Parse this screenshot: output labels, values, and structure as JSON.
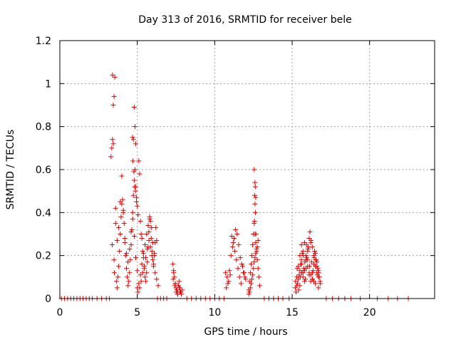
{
  "chart_data": {
    "type": "scatter",
    "title": "Day 313 of 2016, SRMTID for receiver bele",
    "xlabel": "GPS time / hours",
    "ylabel": "SRMTID / TECUs",
    "xlim": [
      0,
      24.2
    ],
    "ylim": [
      0,
      1.2
    ],
    "x_ticks": [
      0,
      5,
      10,
      15,
      20
    ],
    "x_tick_labels": [
      "0",
      "5",
      "10",
      "15",
      "20"
    ],
    "y_ticks": [
      0,
      0.2,
      0.4,
      0.6,
      0.8,
      1.0,
      1.2
    ],
    "y_tick_labels": [
      "0",
      "0.2",
      "0.4",
      "0.6",
      "0.8",
      "1",
      "1.2"
    ],
    "grid": true,
    "marker": "+",
    "series": [
      {
        "name": "SRMTID",
        "color": "#e00000",
        "x": [
          0.1,
          0.3,
          0.5,
          0.7,
          0.9,
          1.1,
          1.3,
          1.5,
          1.7,
          1.9,
          2.1,
          2.4,
          2.7,
          3.0,
          3.2,
          6.3,
          6.5,
          6.7,
          6.9,
          8.2,
          8.5,
          8.8,
          9.1,
          9.4,
          9.7,
          10.0,
          10.3,
          10.6,
          13.2,
          13.5,
          13.8,
          14.1,
          14.4,
          14.8,
          17.2,
          17.6,
          18.0,
          18.4,
          18.8,
          19.4,
          20.5,
          21.2,
          21.8,
          22.5,
          3.3,
          3.35,
          3.4,
          3.45,
          3.5,
          3.45,
          3.55,
          3.4,
          3.6,
          3.38,
          3.5,
          3.52,
          3.65,
          3.7,
          3.75,
          3.8,
          3.85,
          3.9,
          3.95,
          4.0,
          4.05,
          4.1,
          4.15,
          4.2,
          4.25,
          4.3,
          4.35,
          4.4,
          4.45,
          4.5,
          4.55,
          4.6,
          4.65,
          4.7,
          4.75,
          4.8,
          4.85,
          4.9,
          4.95,
          3.6,
          3.7,
          3.8,
          3.9,
          4.0,
          4.1,
          4.2,
          4.3,
          4.4,
          4.5,
          4.6,
          4.7,
          4.8,
          4.9,
          5.0,
          4.7,
          4.75,
          4.8,
          4.85,
          4.9,
          4.72,
          4.78,
          4.82,
          4.88,
          4.95,
          5.0,
          5.05,
          5.1,
          5.15,
          5.2,
          5.25,
          5.3,
          5.35,
          5.4,
          5.45,
          5.5,
          5.55,
          5.6,
          5.65,
          5.7,
          5.75,
          5.8,
          5.85,
          5.9,
          5.95,
          6.0,
          6.05,
          6.1,
          6.15,
          6.2,
          6.25,
          5.0,
          5.1,
          5.2,
          5.3,
          5.4,
          5.5,
          5.6,
          5.7,
          5.8,
          5.9,
          6.0,
          6.1,
          5.05,
          5.15,
          5.25,
          5.35,
          5.45,
          5.55,
          5.65,
          5.75,
          5.85,
          5.95,
          6.05,
          6.15,
          6.25,
          6.35,
          7.3,
          7.35,
          7.4,
          7.45,
          7.5,
          7.55,
          7.6,
          7.65,
          7.7,
          7.75,
          7.8,
          7.85,
          7.9,
          7.32,
          7.42,
          7.52,
          7.62,
          7.72,
          7.82,
          7.45,
          7.55,
          7.65,
          7.75,
          7.35,
          7.6,
          10.7,
          10.8,
          10.9,
          11.0,
          11.1,
          11.2,
          11.3,
          11.4,
          11.5,
          11.6,
          11.7,
          11.8,
          11.9,
          12.0,
          10.75,
          10.85,
          10.95,
          11.05,
          11.15,
          11.25,
          11.35,
          11.45,
          11.55,
          11.65,
          11.75,
          11.85,
          11.95,
          12.2,
          12.25,
          12.3,
          12.35,
          12.4,
          12.45,
          12.5,
          12.55,
          12.6,
          12.65,
          12.7,
          12.75,
          12.8,
          12.85,
          12.9,
          12.55,
          12.6,
          12.62,
          12.58,
          12.65,
          12.6,
          12.63,
          12.57,
          12.66,
          12.2,
          12.3,
          12.4,
          12.5,
          12.6,
          12.7,
          12.8,
          12.25,
          12.35,
          12.45,
          12.55,
          12.65,
          12.75,
          15.2,
          15.3,
          15.4,
          15.5,
          15.6,
          15.7,
          15.8,
          15.9,
          16.0,
          16.1,
          16.2,
          16.3,
          16.4,
          16.5,
          16.6,
          16.7,
          16.8,
          15.25,
          15.35,
          15.45,
          15.55,
          15.65,
          15.75,
          15.85,
          15.95,
          16.05,
          16.15,
          16.25,
          16.35,
          16.45,
          16.55,
          16.65,
          16.75,
          15.3,
          15.4,
          15.5,
          15.6,
          15.7,
          15.8,
          15.9,
          16.0,
          16.1,
          16.2,
          16.3,
          16.4,
          16.5,
          16.6,
          16.7,
          15.22,
          15.42,
          15.62,
          15.82,
          16.02,
          16.22,
          16.42,
          16.62,
          16.82,
          15.32,
          15.52,
          15.72,
          15.92,
          16.12,
          16.32,
          16.52,
          16.72,
          15.5,
          15.7,
          15.9,
          16.1,
          16.3,
          16.5,
          16.7,
          15.6,
          15.8,
          16.0,
          16.2,
          16.4,
          16.6
        ],
        "y": [
          0,
          0,
          0,
          0,
          0,
          0,
          0,
          0,
          0,
          0,
          0,
          0,
          0,
          0,
          0,
          0,
          0,
          0,
          0,
          0,
          0,
          0,
          0,
          0,
          0,
          0,
          0,
          0,
          0,
          0,
          0,
          0,
          0,
          0,
          0,
          0,
          0,
          0,
          0,
          0,
          0,
          0,
          0,
          0,
          0.66,
          0.7,
          0.74,
          0.72,
          0.94,
          0.9,
          1.03,
          1.04,
          0.42,
          0.25,
          0.18,
          0.12,
          0.08,
          0.05,
          0.1,
          0.15,
          0.22,
          0.3,
          0.38,
          0.44,
          0.46,
          0.4,
          0.35,
          0.28,
          0.2,
          0.14,
          0.1,
          0.06,
          0.08,
          0.12,
          0.18,
          0.25,
          0.32,
          0.4,
          0.48,
          0.55,
          0.6,
          0.52,
          0.45,
          0.35,
          0.27,
          0.33,
          0.45,
          0.57,
          0.41,
          0.26,
          0.21,
          0.17,
          0.23,
          0.31,
          0.37,
          0.29,
          0.19,
          0.13,
          0.75,
          0.74,
          0.89,
          0.8,
          0.72,
          0.64,
          0.59,
          0.52,
          0.5,
          0.47,
          0.43,
          0.39,
          0.64,
          0.58,
          0.36,
          0.3,
          0.28,
          0.22,
          0.19,
          0.14,
          0.1,
          0.08,
          0.12,
          0.17,
          0.24,
          0.31,
          0.37,
          0.36,
          0.28,
          0.22,
          0.18,
          0.15,
          0.2,
          0.26,
          0.33,
          0.27,
          0.05,
          0.07,
          0.11,
          0.16,
          0.21,
          0.25,
          0.3,
          0.34,
          0.38,
          0.33,
          0.26,
          0.21,
          0.03,
          0.05,
          0.08,
          0.12,
          0.15,
          0.19,
          0.23,
          0.27,
          0.24,
          0.2,
          0.16,
          0.12,
          0.09,
          0.06,
          0.16,
          0.13,
          0.1,
          0.07,
          0.05,
          0.04,
          0.03,
          0.06,
          0.08,
          0.05,
          0.03,
          0.02,
          0.04,
          0.09,
          0.06,
          0.03,
          0.02,
          0.05,
          0.03,
          0.07,
          0.04,
          0.06,
          0.03,
          0.12,
          0.02,
          0.12,
          0.1,
          0.08,
          0.11,
          0.29,
          0.26,
          0.22,
          0.18,
          0.14,
          0.1,
          0.07,
          0.15,
          0.12,
          0.09,
          0.05,
          0.07,
          0.13,
          0.2,
          0.24,
          0.28,
          0.32,
          0.3,
          0.25,
          0.19,
          0.16,
          0.12,
          0.1,
          0.04,
          0.08,
          0.12,
          0.16,
          0.2,
          0.25,
          0.3,
          0.35,
          0.3,
          0.26,
          0.22,
          0.18,
          0.14,
          0.1,
          0.06,
          0.6,
          0.54,
          0.52,
          0.48,
          0.47,
          0.44,
          0.4,
          0.36,
          0.3,
          0.02,
          0.05,
          0.09,
          0.14,
          0.19,
          0.23,
          0.27,
          0.03,
          0.07,
          0.11,
          0.17,
          0.21,
          0.24,
          0.05,
          0.1,
          0.15,
          0.2,
          0.25,
          0.12,
          0.08,
          0.18,
          0.22,
          0.28,
          0.26,
          0.24,
          0.2,
          0.15,
          0.12,
          0.1,
          0.08,
          0.03,
          0.07,
          0.11,
          0.16,
          0.21,
          0.14,
          0.09,
          0.19,
          0.24,
          0.31,
          0.17,
          0.13,
          0.22,
          0.18,
          0.14,
          0.1,
          0.06,
          0.09,
          0.13,
          0.18,
          0.22,
          0.26,
          0.2,
          0.15,
          0.11,
          0.08,
          0.12,
          0.16,
          0.21,
          0.17,
          0.13,
          0.08,
          0.04,
          0.12,
          0.17,
          0.23,
          0.27,
          0.19,
          0.11,
          0.07,
          0.14,
          0.1,
          0.2,
          0.25,
          0.15,
          0.09,
          0.18,
          0.12,
          0.06,
          0.1,
          0.14,
          0.12,
          0.09,
          0.07,
          0.05,
          0.16,
          0.13,
          0.18,
          0.11,
          0.08,
          0.15
        ]
      }
    ]
  }
}
